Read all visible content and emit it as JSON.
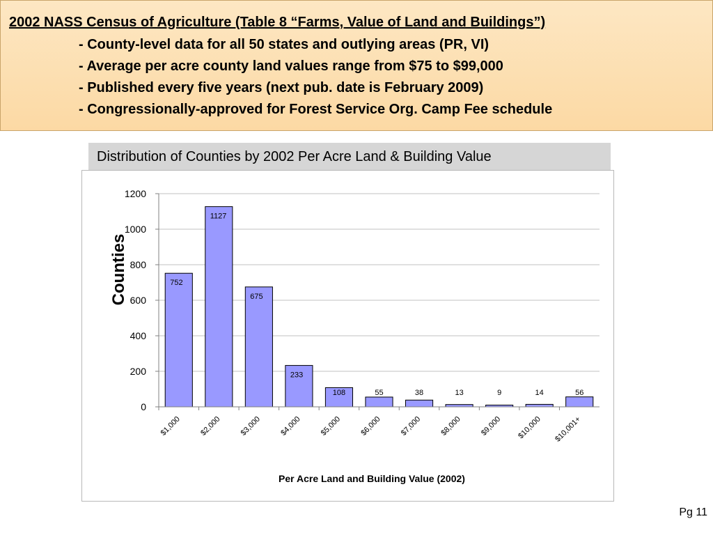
{
  "header": {
    "title": "2002 NASS Census of Agriculture (Table 8 “Farms, Value of Land and Buildings”)",
    "bullets": [
      "- County-level data for all 50 states and outlying areas (PR, VI)",
      "- Average per acre county land values range from $75 to $99,000",
      "- Published every five years (next pub. date is February 2009)",
      "- Congressionally-approved for Forest Service Org. Camp Fee schedule"
    ]
  },
  "page_number": "Pg 11",
  "colors": {
    "bar_fill": "#9999ff",
    "bar_stroke": "#000000",
    "header_bg": "#fcdba8",
    "title_box_bg": "#d6d6d6",
    "gridline": "#c0c0c0"
  },
  "chart_data": {
    "type": "bar",
    "title": "Distribution of Counties by 2002 Per Acre Land & Building Value",
    "xlabel": "Per Acre Land and Building Value (2002)",
    "ylabel": "Counties",
    "categories": [
      "$1,000",
      "$2,000",
      "$3,000",
      "$4,000",
      "$5,000",
      "$6,000",
      "$7,000",
      "$8,000",
      "$9,000",
      "$10,000",
      "$10,001+"
    ],
    "values": [
      752,
      1127,
      675,
      233,
      108,
      55,
      38,
      13,
      9,
      14,
      56
    ],
    "value_labels": [
      "752",
      "1127",
      "675",
      "233",
      "108",
      "55",
      "38",
      "13",
      "9",
      "14",
      "56"
    ],
    "ylim": [
      0,
      1200
    ],
    "yticks": [
      0,
      200,
      400,
      600,
      800,
      1000,
      1200
    ],
    "ytick_labels": [
      "0",
      "200",
      "400",
      "600",
      "800",
      "1000",
      "1200"
    ],
    "grid": true,
    "legend": "none"
  }
}
